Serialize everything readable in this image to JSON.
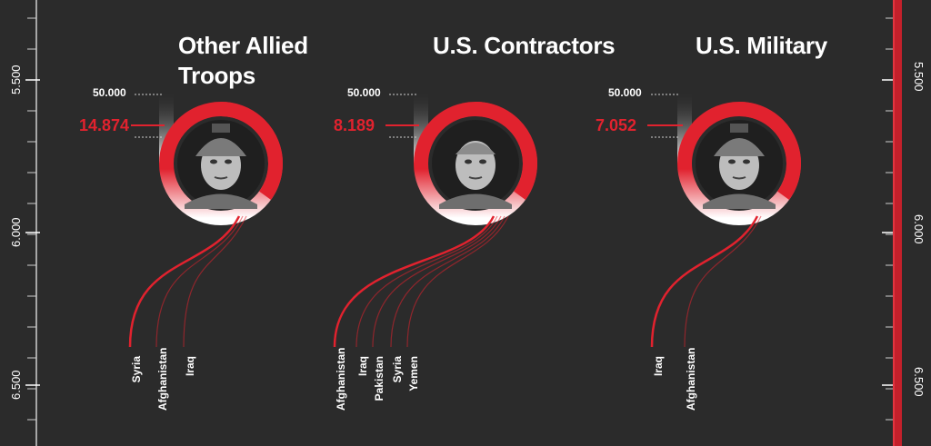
{
  "chart_data": {
    "type": "other",
    "axis_ticks_left": [
      "5.500",
      "6.000",
      "6.500"
    ],
    "axis_ticks_right": [
      "5.500",
      "6.000",
      "6.500"
    ],
    "reference_value": "50.000",
    "panels": [
      {
        "title_lines": [
          "Other Allied",
          "Troops"
        ],
        "value": 14874,
        "value_label": "14.874",
        "countries": [
          "Syria",
          "Afghanistan",
          "Iraq"
        ],
        "portrait": "soldier-with-headset-icon"
      },
      {
        "title_lines": [
          "U.S. Contractors"
        ],
        "value": 8189,
        "value_label": "8.189",
        "countries": [
          "Afghanistan",
          "Iraq",
          "Pakistan",
          "Syria",
          "Yemen"
        ],
        "portrait": "contractor-man-icon"
      },
      {
        "title_lines": [
          "U.S. Military"
        ],
        "value": 7052,
        "value_label": "7.052",
        "countries": [
          "Iraq",
          "Afghanistan"
        ],
        "portrait": "soldier-helmet-icon"
      }
    ]
  },
  "colors": {
    "background": "#2b2b2b",
    "accent": "#e1222e",
    "text": "#ffffff"
  }
}
